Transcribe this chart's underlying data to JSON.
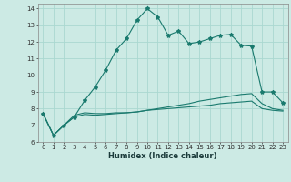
{
  "xlabel": "Humidex (Indice chaleur)",
  "ylabel": "",
  "background_color": "#cceae4",
  "grid_color": "#aad8d0",
  "line_color": "#1a7a6e",
  "xlim": [
    -0.5,
    23.5
  ],
  "ylim": [
    6,
    14.3
  ],
  "xticks": [
    0,
    1,
    2,
    3,
    4,
    5,
    6,
    7,
    8,
    9,
    10,
    11,
    12,
    13,
    14,
    15,
    16,
    17,
    18,
    19,
    20,
    21,
    22,
    23
  ],
  "yticks": [
    6,
    7,
    8,
    9,
    10,
    11,
    12,
    13,
    14
  ],
  "x": [
    0,
    1,
    2,
    3,
    4,
    5,
    6,
    7,
    8,
    9,
    10,
    11,
    12,
    13,
    14,
    15,
    16,
    17,
    18,
    19,
    20,
    21,
    22,
    23
  ],
  "line1": [
    7.7,
    6.4,
    7.0,
    7.5,
    8.5,
    9.3,
    10.3,
    11.5,
    12.2,
    13.3,
    14.0,
    13.5,
    12.4,
    12.65,
    11.9,
    12.0,
    12.2,
    12.4,
    12.45,
    11.8,
    11.75,
    9.0,
    9.0,
    8.35
  ],
  "line2": [
    7.7,
    6.4,
    7.0,
    7.6,
    7.75,
    7.7,
    7.7,
    7.75,
    7.75,
    7.8,
    7.9,
    8.0,
    8.1,
    8.2,
    8.3,
    8.45,
    8.55,
    8.65,
    8.75,
    8.85,
    8.9,
    8.3,
    8.0,
    7.9
  ],
  "line3": [
    7.7,
    6.4,
    7.0,
    7.5,
    7.65,
    7.6,
    7.65,
    7.7,
    7.75,
    7.8,
    7.9,
    7.95,
    8.0,
    8.05,
    8.1,
    8.15,
    8.2,
    8.3,
    8.35,
    8.4,
    8.45,
    8.0,
    7.9,
    7.85
  ],
  "tick_fontsize": 5,
  "xlabel_fontsize": 6,
  "marker_size": 3
}
